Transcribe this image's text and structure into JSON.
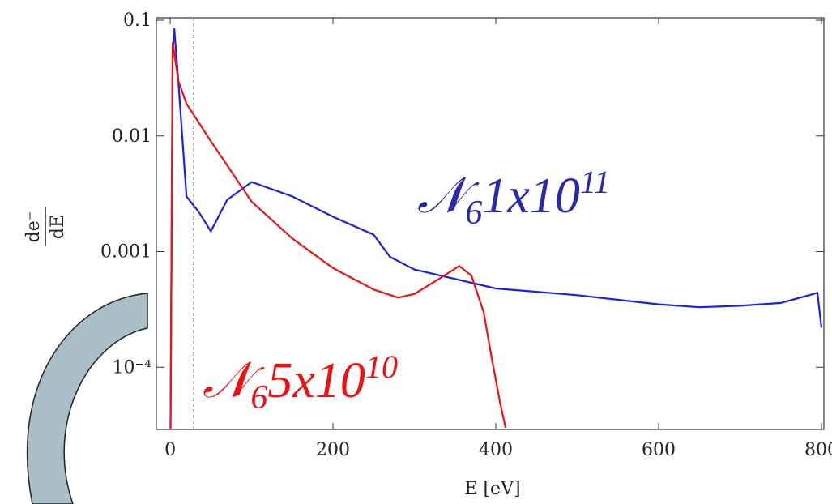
{
  "chart_data": {
    "type": "line",
    "x_label": "E [eV]",
    "y_label_numerator": "de⁻",
    "y_label_denominator": "dE",
    "log_y": true,
    "xlim": [
      -17,
      803
    ],
    "ylim": [
      2.9e-05,
      0.105
    ],
    "xticks": [
      0,
      200,
      400,
      600,
      800
    ],
    "yticks": [
      0.1,
      0.01,
      0.001,
      {
        "value": 0.0001,
        "label": "10⁻⁴"
      }
    ],
    "reference_line_x": 29,
    "series": [
      {
        "name": "𝒩6 1x10^11",
        "color": "#1f1fe0",
        "x": [
          0,
          3,
          5,
          10,
          20,
          35,
          50,
          70,
          100,
          150,
          200,
          250,
          270,
          300,
          400,
          500,
          600,
          650,
          700,
          750,
          795,
          800
        ],
        "values": [
          1e-05,
          0.05,
          0.085,
          0.03,
          0.003,
          0.0022,
          0.0015,
          0.0028,
          0.004,
          0.003,
          0.002,
          0.0014,
          0.0009,
          0.0007,
          0.00048,
          0.00042,
          0.00035,
          0.00033,
          0.00034,
          0.00036,
          0.00044,
          0.00022
        ]
      },
      {
        "name": "𝒩6 5x10^10",
        "color": "#ee1111",
        "x": [
          0,
          3,
          10,
          20,
          50,
          100,
          150,
          200,
          250,
          280,
          300,
          330,
          355,
          370,
          385,
          395,
          405,
          412
        ],
        "values": [
          1e-05,
          0.065,
          0.03,
          0.019,
          0.009,
          0.0027,
          0.0013,
          0.00072,
          0.00047,
          0.0004,
          0.00043,
          0.00058,
          0.00075,
          0.00062,
          0.0003,
          0.00012,
          5e-05,
          3e-05
        ]
      }
    ],
    "annotations": [
      {
        "script": "𝒩",
        "sub": "6",
        "text": "1x10",
        "sup": "11",
        "color": "#2a2aa8"
      },
      {
        "script": "𝒩",
        "sub": "6",
        "text": "5x10",
        "sup": "10",
        "color": "#ee1111"
      }
    ]
  }
}
